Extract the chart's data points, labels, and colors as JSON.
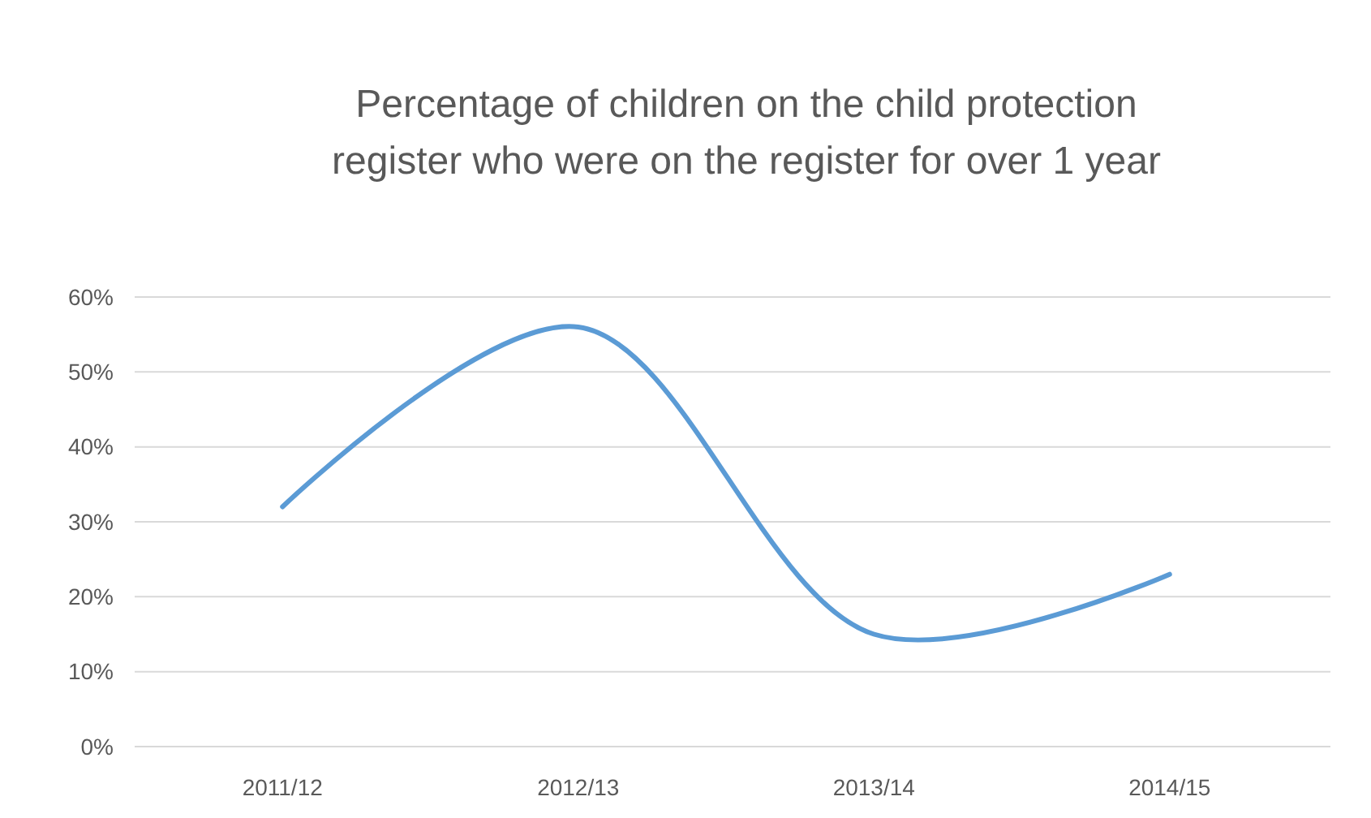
{
  "chart_data": {
    "type": "line",
    "title": "Percentage of children on the child protection register who were on the register for over 1 year",
    "categories": [
      "2011/12",
      "2012/13",
      "2013/14",
      "2014/15"
    ],
    "series": [
      {
        "color": "#5b9bd5",
        "values": [
          32,
          56,
          15,
          23
        ]
      }
    ],
    "ylim": [
      0,
      60
    ],
    "yticks": [
      {
        "value": 0,
        "label": "0%"
      },
      {
        "value": 10,
        "label": "10%"
      },
      {
        "value": 20,
        "label": "20%"
      },
      {
        "value": 30,
        "label": "30%"
      },
      {
        "value": 40,
        "label": "40%"
      },
      {
        "value": 50,
        "label": "50%"
      },
      {
        "value": 60,
        "label": "60%"
      }
    ],
    "grid": "y",
    "marker": "none"
  }
}
